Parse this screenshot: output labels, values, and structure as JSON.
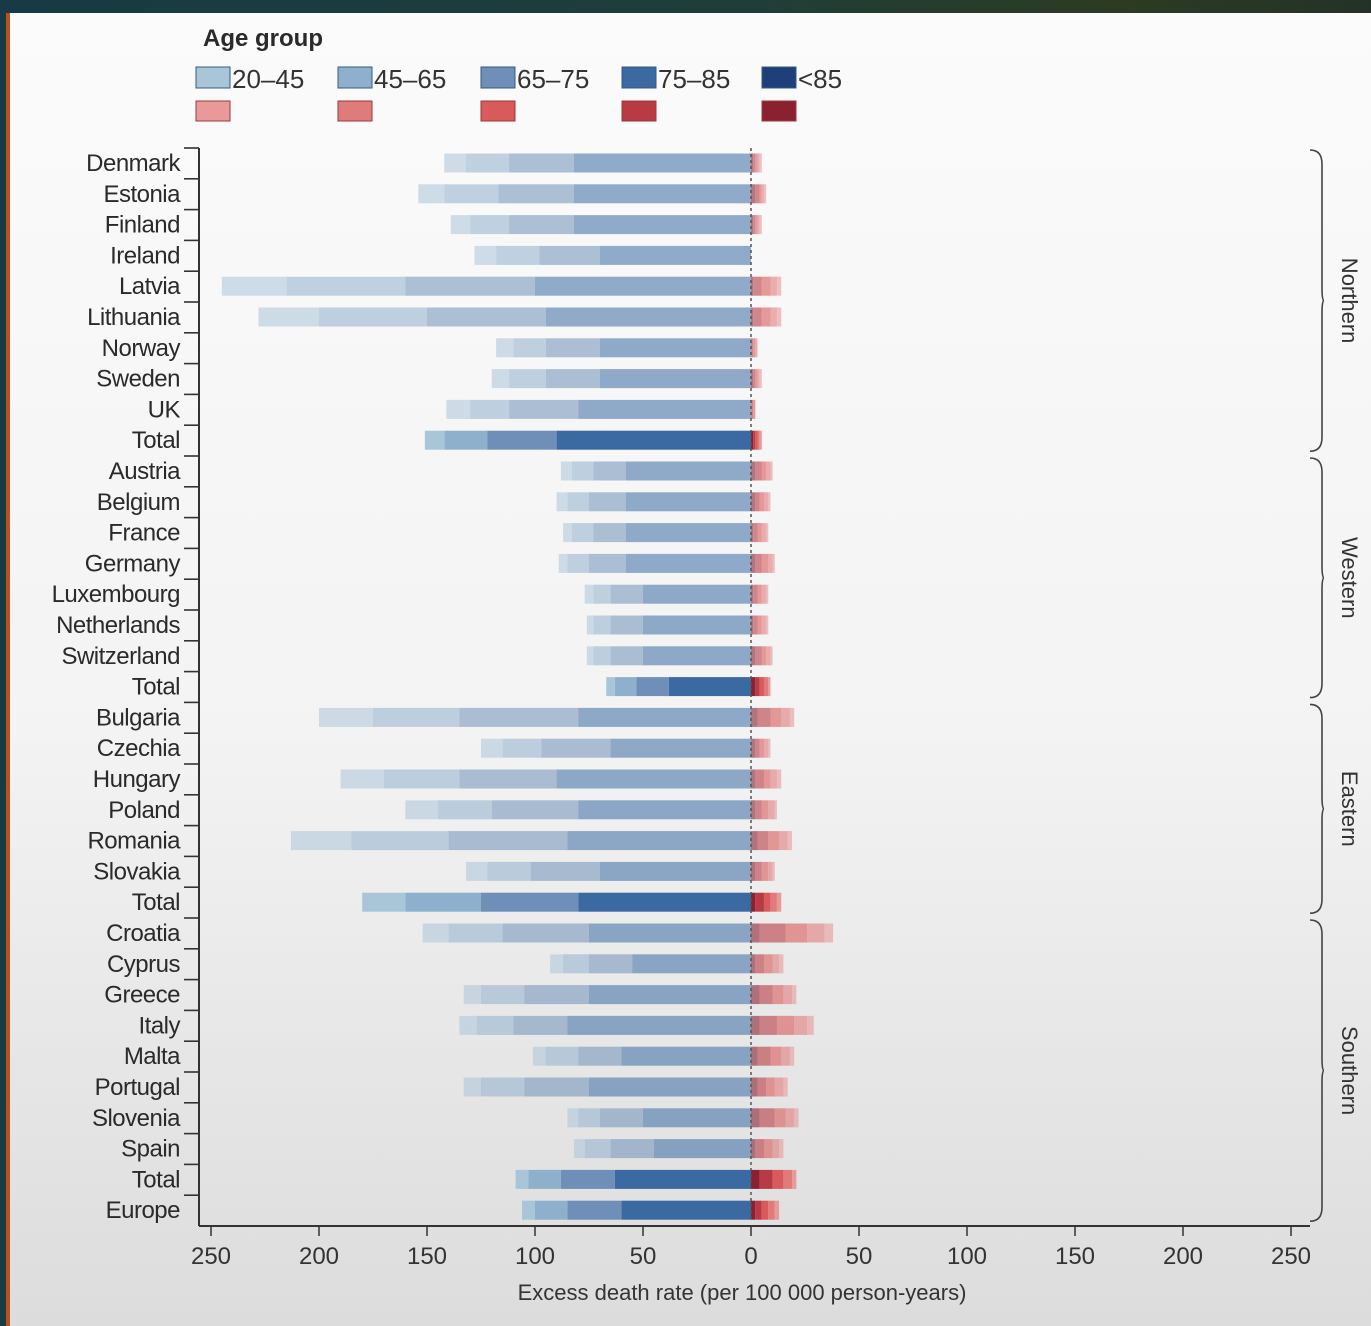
{
  "chart_data": {
    "type": "bar",
    "orientation": "horizontal-diverging",
    "legend_title": "Age group",
    "age_groups": [
      "20–45",
      "45–65",
      "65–75",
      "75–85",
      "<85"
    ],
    "xlabel": "Excess death rate (per 100 000 person-years)",
    "xlim": [
      -250,
      250
    ],
    "x_ticks": [
      "250",
      "200",
      "150",
      "100",
      "50",
      "0",
      "50",
      "100",
      "150",
      "200",
      "250"
    ],
    "x_tick_values": [
      -250,
      -200,
      -150,
      -100,
      -50,
      0,
      50,
      100,
      150,
      200,
      250
    ],
    "grid": false,
    "legend_placement": "top-left",
    "colors": {
      "blue": [
        "#a9c5d8",
        "#8fb0cc",
        "#6f8fb8",
        "#3b6aa3",
        "#1f3f7a"
      ],
      "red": [
        "#e89a9a",
        "#e07b7b",
        "#d85a5a",
        "#b83a44",
        "#8a2030"
      ]
    },
    "categories": [
      "Denmark",
      "Estonia",
      "Finland",
      "Ireland",
      "Latvia",
      "Lithuania",
      "Norway",
      "Sweden",
      "UK",
      "Total",
      "Austria",
      "Belgium",
      "France",
      "Germany",
      "Luxembourg",
      "Netherlands",
      "Switzerland",
      "Total",
      "Bulgaria",
      "Czechia",
      "Hungary",
      "Poland",
      "Romania",
      "Slovakia",
      "Total",
      "Croatia",
      "Cyprus",
      "Greece",
      "Italy",
      "Malta",
      "Portugal",
      "Slovenia",
      "Spain",
      "Total",
      "Europe"
    ],
    "regions": [
      {
        "name": "Northern",
        "from": 0,
        "to": 9
      },
      {
        "name": "Western",
        "from": 10,
        "to": 17
      },
      {
        "name": "Eastern",
        "from": 18,
        "to": 24
      },
      {
        "name": "Southern",
        "from": 25,
        "to": 34
      }
    ],
    "totals_rows": [
      9,
      17,
      24,
      33,
      34
    ],
    "series": [
      {
        "group": "20–45",
        "negative": [
          10,
          12,
          9,
          10,
          30,
          28,
          8,
          8,
          11,
          9,
          5,
          5,
          4,
          4,
          4,
          3,
          3,
          4,
          25,
          10,
          20,
          15,
          28,
          10,
          20,
          12,
          6,
          8,
          8,
          6,
          8,
          5,
          5,
          6,
          6
        ],
        "positive": [
          1,
          1,
          1,
          0,
          2,
          2,
          0,
          1,
          0,
          1,
          1,
          1,
          1,
          1,
          1,
          1,
          1,
          1,
          2,
          1,
          2,
          1,
          2,
          1,
          2,
          4,
          2,
          2,
          3,
          2,
          2,
          2,
          2,
          2,
          2
        ]
      },
      {
        "group": "45–65",
        "negative": [
          20,
          25,
          18,
          20,
          55,
          50,
          15,
          17,
          18,
          20,
          10,
          10,
          10,
          10,
          8,
          8,
          8,
          10,
          40,
          18,
          35,
          25,
          45,
          20,
          35,
          25,
          12,
          20,
          17,
          15,
          20,
          10,
          12,
          15,
          15
        ],
        "positive": [
          1,
          1,
          1,
          0,
          3,
          3,
          1,
          1,
          0,
          1,
          2,
          2,
          2,
          2,
          2,
          2,
          2,
          2,
          4,
          2,
          3,
          3,
          4,
          2,
          3,
          8,
          3,
          4,
          6,
          4,
          4,
          4,
          3,
          4,
          3
        ]
      },
      {
        "group": "65–75",
        "negative": [
          30,
          35,
          30,
          28,
          60,
          55,
          25,
          25,
          32,
          32,
          15,
          17,
          15,
          17,
          15,
          15,
          15,
          15,
          55,
          32,
          45,
          40,
          55,
          32,
          45,
          40,
          20,
          30,
          25,
          20,
          30,
          20,
          20,
          25,
          25
        ],
        "positive": [
          1,
          1,
          1,
          0,
          4,
          4,
          1,
          1,
          1,
          1,
          2,
          2,
          2,
          3,
          2,
          2,
          2,
          2,
          5,
          2,
          3,
          3,
          5,
          3,
          3,
          10,
          4,
          5,
          8,
          5,
          4,
          5,
          4,
          5,
          3
        ]
      },
      {
        "group": "75–85",
        "negative": [
          82,
          82,
          82,
          70,
          100,
          95,
          70,
          70,
          80,
          90,
          58,
          58,
          58,
          58,
          50,
          50,
          50,
          38,
          80,
          65,
          90,
          80,
          85,
          70,
          80,
          75,
          55,
          75,
          85,
          60,
          75,
          50,
          45,
          63,
          60
        ],
        "positive": [
          1,
          2,
          1,
          0,
          4,
          4,
          1,
          1,
          1,
          1,
          3,
          2,
          2,
          3,
          2,
          2,
          3,
          2,
          6,
          2,
          4,
          3,
          5,
          3,
          4,
          12,
          4,
          6,
          8,
          6,
          4,
          7,
          4,
          6,
          3
        ]
      },
      {
        "group": "<85",
        "negative": [
          0,
          0,
          0,
          0,
          0,
          0,
          0,
          0,
          0,
          0,
          0,
          0,
          0,
          0,
          0,
          0,
          0,
          0,
          0,
          0,
          0,
          0,
          0,
          0,
          0,
          0,
          0,
          0,
          0,
          0,
          0,
          0,
          0,
          0,
          0
        ],
        "positive": [
          1,
          2,
          1,
          0,
          1,
          1,
          0,
          1,
          0,
          1,
          2,
          2,
          1,
          2,
          1,
          1,
          2,
          2,
          3,
          2,
          2,
          2,
          3,
          2,
          2,
          4,
          2,
          4,
          4,
          3,
          3,
          4,
          2,
          4,
          2
        ]
      }
    ]
  }
}
